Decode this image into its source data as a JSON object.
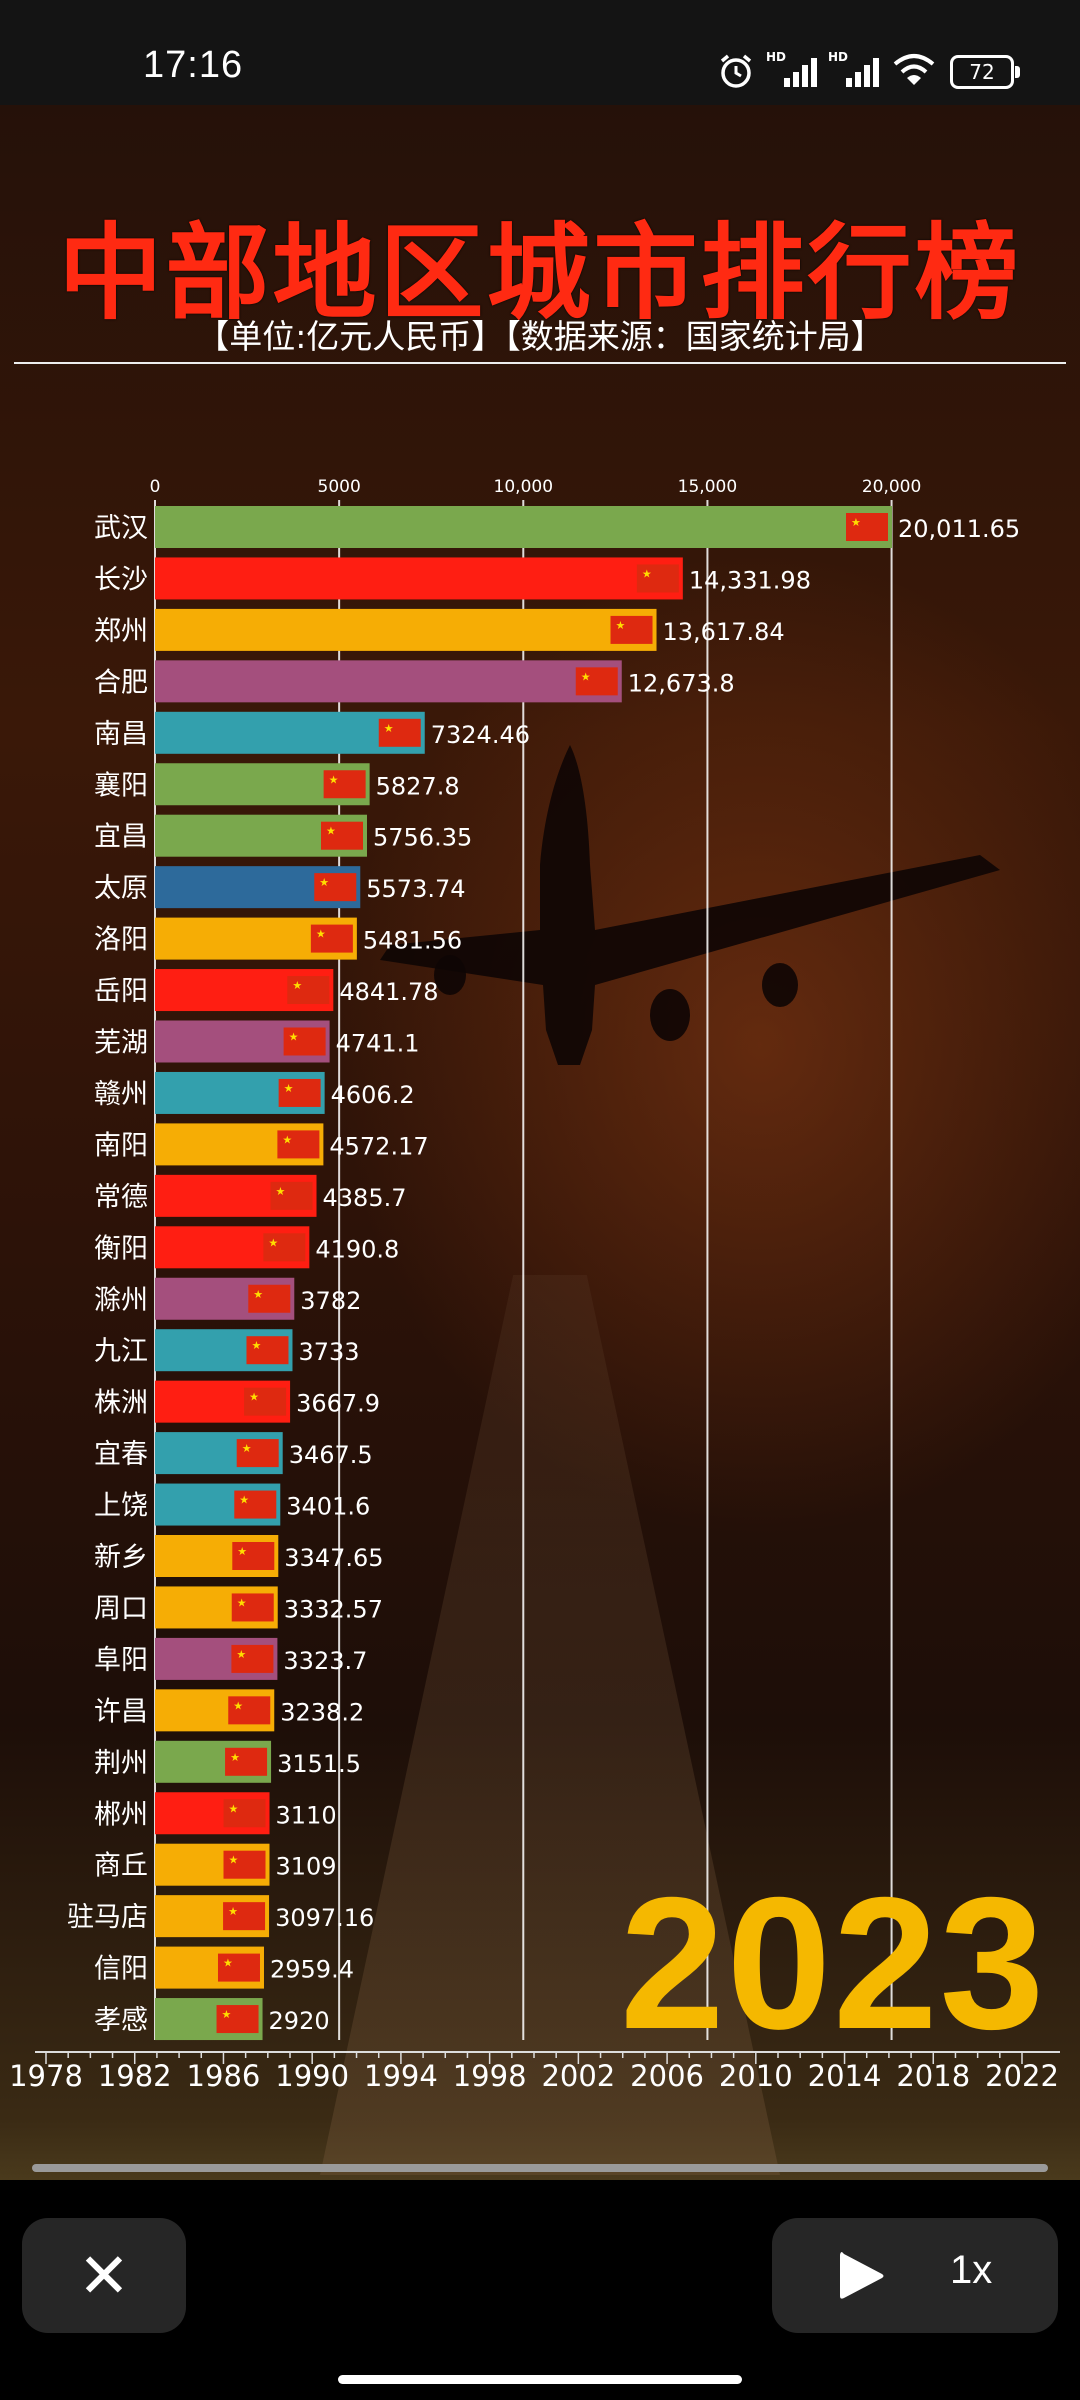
{
  "status_bar": {
    "time": "17:16",
    "battery": "72"
  },
  "video": {
    "title": "中部地区城市排行榜",
    "subtitle": "【单位:亿元人民币】【数据来源：国家统计局】",
    "current_year": "2023"
  },
  "chart_data": {
    "type": "bar",
    "orientation": "horizontal",
    "title": "中部地区城市排行榜",
    "subtitle": "【单位:亿元人民币】【数据来源：国家统计局】",
    "year": "2023",
    "xlim": [
      0,
      20011.65
    ],
    "x_ticks": [
      "0",
      "5000",
      "10,000",
      "15,000",
      "20,000"
    ],
    "x_tick_values": [
      0,
      5000,
      10000,
      15000,
      20000
    ],
    "categories": [
      "武汉",
      "长沙",
      "郑州",
      "合肥",
      "南昌",
      "襄阳",
      "宜昌",
      "太原",
      "洛阳",
      "岳阳",
      "芜湖",
      "赣州",
      "南阳",
      "常德",
      "衡阳",
      "滁州",
      "九江",
      "株洲",
      "宜春",
      "上饶",
      "新乡",
      "周口",
      "阜阳",
      "许昌",
      "荆州",
      "郴州",
      "商丘",
      "驻马店",
      "信阳",
      "孝感"
    ],
    "values": [
      20011.65,
      14331.98,
      13617.84,
      12673.8,
      7324.46,
      5827.8,
      5756.35,
      5573.74,
      5481.56,
      4841.78,
      4741.1,
      4606.2,
      4572.17,
      4385.7,
      4190.8,
      3782,
      3733,
      3667.9,
      3467.5,
      3401.6,
      3347.65,
      3332.57,
      3323.7,
      3238.2,
      3151.5,
      3110,
      3109,
      3097.16,
      2959.4,
      2920
    ],
    "value_labels": [
      "20,011.65",
      "14,331.98",
      "13,617.84",
      "12,673.8",
      "7324.46",
      "5827.8",
      "5756.35",
      "5573.74",
      "5481.56",
      "4841.78",
      "4741.1",
      "4606.2",
      "4572.17",
      "4385.7",
      "4190.8",
      "3782",
      "3733",
      "3667.9",
      "3467.5",
      "3401.6",
      "3347.65",
      "3332.57",
      "3323.7",
      "3238.2",
      "3151.5",
      "3110",
      "3109",
      "3097.16",
      "2959.4",
      "2920"
    ],
    "colors": [
      "#7aa84d",
      "#ff1e12",
      "#f6ad05",
      "#a44f7d",
      "#33a0ad",
      "#7aa84d",
      "#7aa84d",
      "#2d6a9b",
      "#f6ad05",
      "#ff1e12",
      "#a44f7d",
      "#33a0ad",
      "#f6ad05",
      "#ff1e12",
      "#ff1e12",
      "#a44f7d",
      "#33a0ad",
      "#ff1e12",
      "#33a0ad",
      "#33a0ad",
      "#f6ad05",
      "#f6ad05",
      "#a44f7d",
      "#f6ad05",
      "#7aa84d",
      "#ff1e12",
      "#f6ad05",
      "#f6ad05",
      "#f6ad05",
      "#7aa84d"
    ],
    "timeline_ticks": [
      "1978",
      "1982",
      "1986",
      "1990",
      "1994",
      "1998",
      "2002",
      "2006",
      "2010",
      "2014",
      "2018",
      "2022"
    ],
    "timeline_range": [
      1978,
      2023
    ],
    "grid": true
  },
  "controls": {
    "close_icon": "✕",
    "play_icon": "play-icon",
    "speed": "1x"
  }
}
